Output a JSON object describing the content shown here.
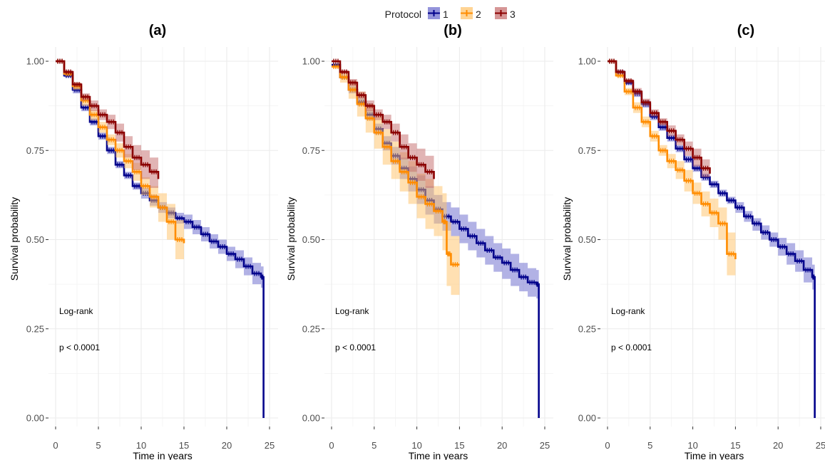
{
  "legend": {
    "title": "Protocol",
    "items": [
      {
        "label": "1",
        "color": "#00008B",
        "fill": "#6666CC"
      },
      {
        "label": "2",
        "color": "#FF8C00",
        "fill": "#FFC266"
      },
      {
        "label": "3",
        "color": "#8B0000",
        "fill": "#C46A6A"
      }
    ],
    "position": "top"
  },
  "chart_data": [
    {
      "type": "line",
      "title": "(a)",
      "xlabel": "Time in years",
      "ylabel": "Survival probability",
      "xlim": [
        0,
        25
      ],
      "ylim": [
        0,
        1
      ],
      "xticks": [
        0,
        5,
        10,
        15,
        20,
        25
      ],
      "yticks": [
        "0.00",
        "0.25",
        "0.50",
        "0.75",
        "1.00"
      ],
      "grid": true,
      "annotations": [
        "Log-rank",
        "p < 0.0001"
      ],
      "series": [
        {
          "name": "1",
          "x": [
            0,
            1,
            2,
            3,
            4,
            5,
            6,
            7,
            8,
            9,
            10,
            11,
            12,
            13,
            14,
            15,
            16,
            17,
            18,
            19,
            20,
            21,
            22,
            23,
            24,
            24.3,
            24.3
          ],
          "y": [
            1.0,
            0.96,
            0.92,
            0.87,
            0.83,
            0.79,
            0.75,
            0.71,
            0.68,
            0.65,
            0.63,
            0.61,
            0.59,
            0.575,
            0.56,
            0.55,
            0.535,
            0.515,
            0.495,
            0.48,
            0.46,
            0.445,
            0.425,
            0.405,
            0.395,
            0.395,
            0.0
          ],
          "lower": [
            1.0,
            0.955,
            0.91,
            0.86,
            0.82,
            0.78,
            0.74,
            0.7,
            0.67,
            0.64,
            0.615,
            0.595,
            0.575,
            0.56,
            0.545,
            0.53,
            0.515,
            0.495,
            0.475,
            0.46,
            0.44,
            0.42,
            0.4,
            0.375,
            0.365,
            0.365,
            0.0
          ],
          "upper": [
            1.0,
            0.965,
            0.93,
            0.88,
            0.84,
            0.8,
            0.76,
            0.72,
            0.69,
            0.66,
            0.645,
            0.625,
            0.605,
            0.59,
            0.575,
            0.57,
            0.555,
            0.535,
            0.515,
            0.5,
            0.48,
            0.47,
            0.45,
            0.435,
            0.425,
            0.425,
            0.0
          ]
        },
        {
          "name": "2",
          "x": [
            0,
            1,
            2,
            3,
            4,
            5,
            6,
            7,
            8,
            9,
            10,
            11,
            12,
            13,
            14,
            15
          ],
          "y": [
            1.0,
            0.965,
            0.93,
            0.89,
            0.85,
            0.815,
            0.78,
            0.75,
            0.72,
            0.69,
            0.65,
            0.62,
            0.59,
            0.55,
            0.5,
            0.49
          ],
          "lower": [
            1.0,
            0.96,
            0.92,
            0.875,
            0.835,
            0.8,
            0.765,
            0.73,
            0.7,
            0.665,
            0.625,
            0.59,
            0.55,
            0.5,
            0.445,
            0.445
          ],
          "upper": [
            1.0,
            0.97,
            0.94,
            0.905,
            0.865,
            0.83,
            0.795,
            0.77,
            0.74,
            0.715,
            0.675,
            0.65,
            0.63,
            0.6,
            0.555,
            0.54
          ]
        },
        {
          "name": "3",
          "x": [
            0,
            1,
            2,
            3,
            4,
            5,
            6,
            7,
            8,
            9,
            10,
            11,
            12
          ],
          "y": [
            1.0,
            0.97,
            0.935,
            0.9,
            0.875,
            0.85,
            0.83,
            0.8,
            0.76,
            0.73,
            0.71,
            0.69,
            0.67
          ],
          "lower": [
            1.0,
            0.965,
            0.93,
            0.89,
            0.86,
            0.835,
            0.81,
            0.775,
            0.73,
            0.695,
            0.67,
            0.645,
            0.625
          ],
          "upper": [
            1.0,
            0.975,
            0.94,
            0.91,
            0.89,
            0.865,
            0.85,
            0.825,
            0.79,
            0.765,
            0.75,
            0.73,
            0.715
          ]
        }
      ]
    },
    {
      "type": "line",
      "title": "(b)",
      "xlabel": "Time in years",
      "ylabel": "Survival probability",
      "xlim": [
        0,
        25
      ],
      "ylim": [
        0,
        1
      ],
      "xticks": [
        0,
        5,
        10,
        15,
        20,
        25
      ],
      "yticks": [
        "0.00",
        "0.25",
        "0.50",
        "0.75",
        "1.00"
      ],
      "grid": true,
      "annotations": [
        "Log-rank",
        "p < 0.0001"
      ],
      "series": [
        {
          "name": "1",
          "x": [
            0,
            1,
            2,
            3,
            4,
            5,
            6,
            7,
            8,
            9,
            10,
            11,
            12,
            13,
            14,
            15,
            16,
            17,
            18,
            19,
            20,
            21,
            22,
            23,
            24,
            24.3,
            24.3
          ],
          "y": [
            0.99,
            0.955,
            0.92,
            0.885,
            0.85,
            0.81,
            0.77,
            0.735,
            0.7,
            0.67,
            0.64,
            0.61,
            0.585,
            0.565,
            0.55,
            0.53,
            0.51,
            0.49,
            0.47,
            0.45,
            0.435,
            0.415,
            0.395,
            0.38,
            0.375,
            0.375,
            0.0
          ],
          "lower": [
            0.99,
            0.95,
            0.91,
            0.875,
            0.835,
            0.795,
            0.75,
            0.71,
            0.67,
            0.635,
            0.6,
            0.57,
            0.545,
            0.525,
            0.51,
            0.49,
            0.47,
            0.45,
            0.43,
            0.41,
            0.39,
            0.37,
            0.355,
            0.34,
            0.335,
            0.335,
            0.0
          ],
          "upper": [
            0.99,
            0.96,
            0.93,
            0.9,
            0.865,
            0.825,
            0.79,
            0.76,
            0.73,
            0.705,
            0.68,
            0.65,
            0.625,
            0.605,
            0.59,
            0.57,
            0.55,
            0.53,
            0.51,
            0.49,
            0.475,
            0.46,
            0.435,
            0.42,
            0.415,
            0.415,
            0.0
          ]
        },
        {
          "name": "2",
          "x": [
            0,
            1,
            2,
            3,
            4,
            5,
            6,
            7,
            8,
            9,
            10,
            11,
            12,
            13,
            13.5,
            14,
            15
          ],
          "y": [
            0.985,
            0.955,
            0.92,
            0.88,
            0.84,
            0.8,
            0.76,
            0.72,
            0.69,
            0.66,
            0.62,
            0.6,
            0.58,
            0.55,
            0.46,
            0.43,
            0.43
          ],
          "lower": [
            0.985,
            0.94,
            0.895,
            0.845,
            0.8,
            0.755,
            0.71,
            0.67,
            0.635,
            0.6,
            0.56,
            0.53,
            0.51,
            0.47,
            0.37,
            0.345,
            0.345
          ],
          "upper": [
            0.985,
            0.97,
            0.945,
            0.915,
            0.88,
            0.845,
            0.81,
            0.775,
            0.745,
            0.72,
            0.685,
            0.67,
            0.65,
            0.63,
            0.55,
            0.51,
            0.5
          ]
        },
        {
          "name": "3",
          "x": [
            0,
            1,
            2,
            3,
            4,
            5,
            6,
            7,
            8,
            9,
            10,
            11,
            12
          ],
          "y": [
            1.0,
            0.97,
            0.94,
            0.905,
            0.875,
            0.85,
            0.83,
            0.8,
            0.76,
            0.73,
            0.71,
            0.69,
            0.67
          ],
          "lower": [
            1.0,
            0.965,
            0.93,
            0.895,
            0.86,
            0.835,
            0.81,
            0.775,
            0.725,
            0.69,
            0.665,
            0.645,
            0.635
          ],
          "upper": [
            1.0,
            0.975,
            0.95,
            0.915,
            0.89,
            0.865,
            0.85,
            0.825,
            0.795,
            0.77,
            0.755,
            0.735,
            0.71
          ]
        }
      ]
    },
    {
      "type": "line",
      "title": "(c)",
      "xlabel": "Time in years",
      "ylabel": "Survival probability",
      "xlim": [
        0,
        25
      ],
      "ylim": [
        0,
        1
      ],
      "xticks": [
        0,
        5,
        10,
        15,
        20,
        25
      ],
      "yticks": [
        "0.00",
        "0.25",
        "0.50",
        "0.75",
        "1.00"
      ],
      "grid": true,
      "annotations": [
        "Log-rank",
        "p < 0.0001"
      ],
      "series": [
        {
          "name": "1",
          "x": [
            0,
            1,
            2,
            3,
            4,
            5,
            6,
            7,
            8,
            9,
            10,
            11,
            12,
            13,
            14,
            15,
            16,
            17,
            18,
            19,
            20,
            21,
            22,
            23,
            24,
            24.3,
            24.3
          ],
          "y": [
            1.0,
            0.97,
            0.94,
            0.91,
            0.88,
            0.845,
            0.815,
            0.785,
            0.755,
            0.725,
            0.7,
            0.675,
            0.655,
            0.63,
            0.61,
            0.59,
            0.565,
            0.545,
            0.52,
            0.5,
            0.48,
            0.46,
            0.44,
            0.415,
            0.395,
            0.395,
            0.0
          ],
          "lower": [
            1.0,
            0.965,
            0.935,
            0.9,
            0.87,
            0.835,
            0.805,
            0.775,
            0.745,
            0.715,
            0.69,
            0.665,
            0.645,
            0.62,
            0.6,
            0.575,
            0.55,
            0.525,
            0.5,
            0.48,
            0.455,
            0.43,
            0.41,
            0.38,
            0.36,
            0.36,
            0.0
          ],
          "upper": [
            1.0,
            0.975,
            0.945,
            0.92,
            0.89,
            0.855,
            0.825,
            0.795,
            0.765,
            0.735,
            0.71,
            0.685,
            0.665,
            0.64,
            0.62,
            0.605,
            0.58,
            0.56,
            0.54,
            0.52,
            0.505,
            0.49,
            0.47,
            0.45,
            0.43,
            0.43,
            0.0
          ]
        },
        {
          "name": "2",
          "x": [
            0,
            1,
            2,
            3,
            4,
            5,
            6,
            7,
            8,
            9,
            10,
            11,
            12,
            13,
            14,
            15
          ],
          "y": [
            1.0,
            0.96,
            0.915,
            0.87,
            0.83,
            0.79,
            0.75,
            0.72,
            0.695,
            0.665,
            0.63,
            0.6,
            0.575,
            0.545,
            0.46,
            0.445
          ],
          "lower": [
            1.0,
            0.955,
            0.905,
            0.855,
            0.815,
            0.775,
            0.735,
            0.7,
            0.67,
            0.635,
            0.6,
            0.565,
            0.535,
            0.5,
            0.4,
            0.38
          ],
          "upper": [
            1.0,
            0.965,
            0.925,
            0.885,
            0.845,
            0.805,
            0.765,
            0.74,
            0.72,
            0.695,
            0.66,
            0.635,
            0.615,
            0.59,
            0.52,
            0.51
          ]
        },
        {
          "name": "3",
          "x": [
            0,
            1,
            2,
            3,
            4,
            5,
            6,
            7,
            8,
            9,
            10,
            11,
            12
          ],
          "y": [
            1.0,
            0.97,
            0.945,
            0.915,
            0.885,
            0.855,
            0.83,
            0.805,
            0.78,
            0.755,
            0.73,
            0.7,
            0.685
          ],
          "lower": [
            1.0,
            0.965,
            0.94,
            0.905,
            0.875,
            0.845,
            0.82,
            0.79,
            0.765,
            0.735,
            0.705,
            0.675,
            0.66
          ],
          "upper": [
            1.0,
            0.975,
            0.95,
            0.925,
            0.895,
            0.865,
            0.84,
            0.82,
            0.795,
            0.775,
            0.755,
            0.725,
            0.71
          ]
        }
      ]
    }
  ]
}
